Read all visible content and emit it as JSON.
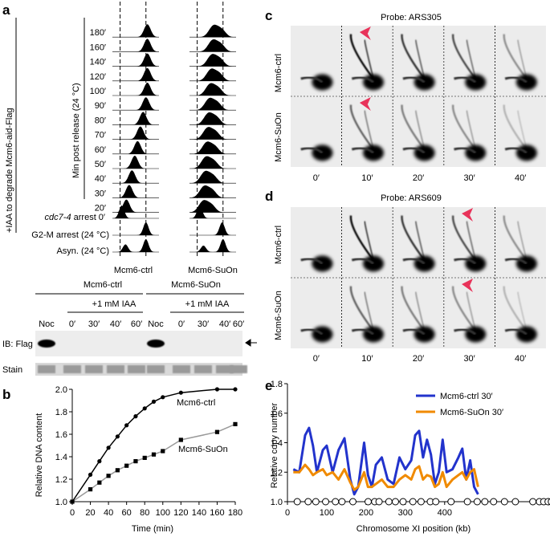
{
  "panels": {
    "a": "a",
    "b": "b",
    "c": "c",
    "d": "d",
    "e": "e"
  },
  "panel_a": {
    "side_label": "+IAA to degrade Mcm6-aid-Flag",
    "time_axis_label": "Min post release (24 °C)",
    "time_rows": [
      "180′",
      "160′",
      "140′",
      "120′",
      "100′",
      "90′",
      "80′",
      "70′",
      "60′",
      "50′",
      "40′",
      "30′",
      "20′"
    ],
    "arrest_cdc7": "cdc7-4",
    "arrest_cdc7_suffix": " arrest 0′",
    "arrest_g2m": "G2-M arrest (24 °C)",
    "asyn": "Asyn. (24 °C)",
    "col_labels": [
      "Mcm6-ctrl",
      "Mcm6-SuOn"
    ],
    "blot": {
      "groups": [
        "Mcm6-ctrl",
        "Mcm6-SuOn"
      ],
      "treatment": "+1 mM IAA",
      "lanes": [
        "Noc",
        "0′",
        "30′",
        "40′",
        "60′"
      ],
      "rows": [
        "IB: Flag",
        "Stain"
      ],
      "arrow_icon": "arrow-left-icon"
    }
  },
  "panel_c": {
    "probe": "Probe: ARS305",
    "rows": [
      "Mcm6-ctrl",
      "Mcm6-SuOn"
    ],
    "cols": [
      "0′",
      "10′",
      "20′",
      "30′",
      "40′"
    ]
  },
  "panel_d": {
    "probe": "Probe: ARS609",
    "rows": [
      "Mcm6-ctrl",
      "Mcm6-SuOn"
    ],
    "cols": [
      "0′",
      "10′",
      "20′",
      "30′",
      "40′"
    ]
  },
  "accent_color": "#e8335a",
  "chart_data": [
    {
      "type": "line",
      "panel": "b",
      "xlabel": "Time (min)",
      "ylabel": "Relative DNA content",
      "xlim": [
        0,
        180
      ],
      "ylim": [
        1.0,
        2.0
      ],
      "xticks": [
        "0",
        "20",
        "40",
        "60",
        "80",
        "100",
        "120",
        "140",
        "160",
        "180"
      ],
      "yticks": [
        "1.0",
        "1.2",
        "1.4",
        "1.6",
        "1.8",
        "2.0"
      ],
      "series": [
        {
          "name": "Mcm6-ctrl",
          "color": "#000000",
          "marker": "circle",
          "x": [
            0,
            20,
            30,
            40,
            50,
            60,
            70,
            80,
            90,
            100,
            120,
            160,
            180
          ],
          "y": [
            1.0,
            1.24,
            1.36,
            1.48,
            1.58,
            1.68,
            1.76,
            1.83,
            1.89,
            1.93,
            1.97,
            2.0,
            2.0
          ]
        },
        {
          "name": "Mcm6-SuOn",
          "color": "#000000",
          "marker": "square",
          "line_color": "#999999",
          "x": [
            0,
            20,
            30,
            40,
            50,
            60,
            70,
            80,
            90,
            100,
            120,
            160,
            180
          ],
          "y": [
            1.0,
            1.11,
            1.17,
            1.23,
            1.28,
            1.32,
            1.36,
            1.39,
            1.42,
            1.45,
            1.55,
            1.62,
            1.69
          ]
        }
      ]
    },
    {
      "type": "line",
      "panel": "e",
      "xlabel": "Chromosome XI position (kb)",
      "ylabel": "Relative copy number",
      "xlim": [
        0,
        666
      ],
      "ylim": [
        1.0,
        1.8
      ],
      "xticks": [
        "0",
        "100",
        "200",
        "300",
        "400"
      ],
      "yticks": [
        "1.0",
        "1.2",
        "1.4",
        "1.6",
        "1.8"
      ],
      "legend_placement": "top-right",
      "series": [
        {
          "name": "Mcm6-ctrl 30′",
          "color": "#2233cc",
          "x": [
            15,
            30,
            45,
            55,
            65,
            75,
            90,
            100,
            115,
            130,
            145,
            160,
            170,
            180,
            195,
            205,
            215,
            225,
            240,
            255,
            270,
            285,
            300,
            315,
            325,
            335,
            345,
            355,
            365,
            375,
            385,
            395,
            405,
            420,
            435,
            445,
            455,
            465,
            475,
            485
          ],
          "y": [
            1.22,
            1.2,
            1.45,
            1.5,
            1.38,
            1.2,
            1.35,
            1.38,
            1.2,
            1.35,
            1.43,
            1.15,
            1.05,
            1.1,
            1.4,
            1.18,
            1.1,
            1.25,
            1.3,
            1.15,
            1.12,
            1.3,
            1.22,
            1.28,
            1.45,
            1.48,
            1.3,
            1.42,
            1.32,
            1.12,
            1.2,
            1.42,
            1.2,
            1.22,
            1.3,
            1.36,
            1.15,
            1.28,
            1.1,
            1.05
          ]
        },
        {
          "name": "Mcm6-SuOn 30′",
          "color": "#f08a00",
          "x": [
            15,
            30,
            45,
            55,
            65,
            75,
            90,
            100,
            115,
            130,
            145,
            160,
            170,
            180,
            195,
            205,
            215,
            225,
            240,
            255,
            270,
            285,
            300,
            315,
            325,
            335,
            345,
            355,
            365,
            375,
            385,
            395,
            405,
            420,
            435,
            445,
            455,
            465,
            475,
            485
          ],
          "y": [
            1.2,
            1.2,
            1.25,
            1.22,
            1.18,
            1.2,
            1.22,
            1.18,
            1.2,
            1.15,
            1.22,
            1.13,
            1.08,
            1.1,
            1.2,
            1.1,
            1.1,
            1.12,
            1.15,
            1.1,
            1.1,
            1.15,
            1.18,
            1.15,
            1.22,
            1.24,
            1.15,
            1.18,
            1.17,
            1.1,
            1.12,
            1.2,
            1.1,
            1.15,
            1.18,
            1.2,
            1.15,
            1.2,
            1.22,
            1.1
          ]
        }
      ],
      "origin_markers_kb": [
        18,
        38,
        52,
        70,
        88,
        100,
        120,
        148,
        160,
        168,
        186,
        198,
        212,
        230,
        245,
        262,
        272,
        300,
        330,
        348,
        362,
        378,
        398,
        418,
        450,
        462,
        470,
        478,
        484
      ]
    }
  ]
}
